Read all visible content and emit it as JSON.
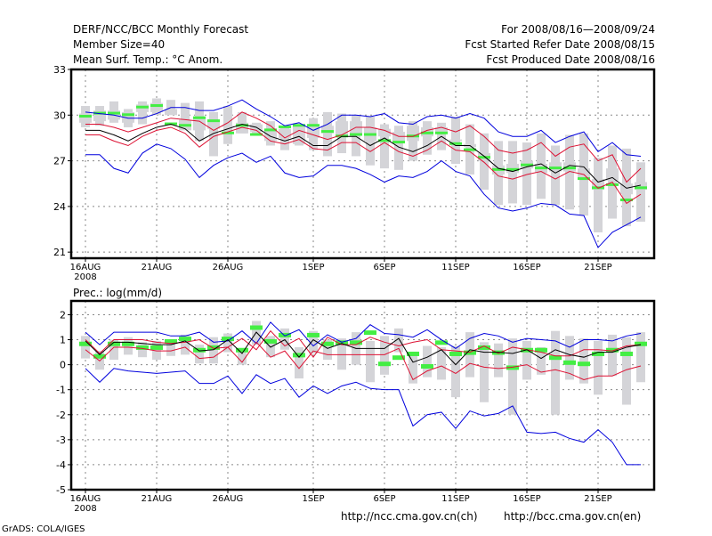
{
  "header": {
    "title": "DERF/NCC/BCC Monthly Forecast",
    "member_size": "Member Size=40",
    "variable": "Mean Surf. Temp.: °C Anom.",
    "period": "For 2008/08/16—2008/09/24",
    "started": "Fcst Started Refer Date 2008/08/15",
    "produced": "Fcst Produced Date 2008/08/16"
  },
  "footer": {
    "url_ch": "http://ncc.cma.gov.cn(ch)",
    "url_en": "http://bcc.cma.gov.cn(en)",
    "credit": "GrADS: COLA/IGES"
  },
  "colors": {
    "outer": "#0000dd",
    "inner": "#dd1133",
    "mean": "#000000",
    "box": "#d4d4d8",
    "median": "#44ee44",
    "grid": "#888888"
  },
  "chart_data": [
    {
      "type": "line",
      "title": "Mean Surf. Temp.: °C Anom.",
      "xlabel": "",
      "ylabel": "",
      "ylim": [
        20.6,
        33
      ],
      "yticks": [
        21,
        24,
        27,
        30,
        33
      ],
      "xtick_labels": [
        "16AUG",
        "21AUG",
        "26AUG",
        "1SEP",
        "6SEP",
        "11SEP",
        "16SEP",
        "21SEP"
      ],
      "xtick_days": [
        0,
        5,
        10,
        16,
        21,
        26,
        31,
        36
      ],
      "year_label": "2008",
      "grid": true,
      "days": 40,
      "series": [
        {
          "name": "max",
          "role": "outer",
          "values": [
            30.2,
            30.1,
            30.0,
            29.8,
            29.8,
            30.1,
            30.5,
            30.5,
            30.3,
            30.3,
            30.6,
            31.0,
            30.4,
            29.9,
            29.3,
            29.5,
            29.0,
            29.4,
            30.0,
            30.0,
            29.9,
            30.1,
            29.5,
            29.4,
            29.9,
            30.0,
            29.8,
            30.1,
            29.8,
            28.9,
            28.6,
            28.6,
            29.0,
            28.2,
            28.6,
            28.9,
            27.6,
            28.2,
            27.4,
            27.3
          ]
        },
        {
          "name": "p75",
          "role": "inner",
          "values": [
            29.4,
            29.4,
            29.2,
            28.9,
            29.2,
            29.5,
            29.8,
            29.7,
            29.6,
            29.0,
            29.5,
            30.2,
            29.8,
            29.3,
            28.5,
            29.0,
            28.7,
            28.4,
            28.7,
            29.2,
            29.2,
            29.0,
            28.6,
            28.6,
            29.0,
            29.2,
            28.9,
            29.3,
            28.6,
            27.7,
            27.5,
            27.7,
            28.2,
            27.3,
            27.9,
            28.1,
            27.0,
            27.4,
            25.6,
            26.5
          ]
        },
        {
          "name": "mean",
          "role": "mean",
          "values": [
            29.0,
            29.0,
            28.7,
            28.3,
            28.8,
            29.2,
            29.4,
            29.1,
            28.3,
            28.8,
            29.1,
            29.4,
            29.2,
            28.6,
            28.3,
            28.6,
            28.0,
            28.0,
            28.6,
            28.6,
            28.0,
            28.5,
            27.9,
            27.6,
            28.0,
            28.6,
            28.0,
            28.0,
            27.3,
            26.5,
            26.3,
            26.6,
            26.8,
            26.2,
            26.7,
            26.6,
            25.6,
            25.9,
            25.2,
            25.4
          ]
        },
        {
          "name": "p25",
          "role": "inner",
          "values": [
            28.7,
            28.7,
            28.3,
            28.0,
            28.6,
            29.0,
            29.2,
            28.8,
            27.9,
            28.6,
            28.9,
            29.2,
            29.0,
            28.3,
            28.1,
            28.4,
            27.8,
            27.7,
            28.2,
            28.2,
            27.6,
            28.2,
            27.6,
            27.3,
            27.7,
            28.3,
            27.7,
            27.6,
            26.9,
            26.0,
            25.8,
            26.1,
            26.3,
            25.8,
            26.3,
            26.1,
            25.2,
            25.6,
            24.2,
            24.8
          ]
        },
        {
          "name": "min",
          "role": "outer",
          "values": [
            27.4,
            27.4,
            26.5,
            26.2,
            27.5,
            28.1,
            27.8,
            27.1,
            25.9,
            26.7,
            27.2,
            27.5,
            26.9,
            27.3,
            26.2,
            25.9,
            26.0,
            26.7,
            26.7,
            26.5,
            26.1,
            25.6,
            26.0,
            25.9,
            26.3,
            27.0,
            26.3,
            26.0,
            24.8,
            23.9,
            23.7,
            23.9,
            24.2,
            24.1,
            23.5,
            23.4,
            21.3,
            22.3,
            22.8,
            23.3
          ]
        }
      ],
      "boxes": {
        "low": [
          29.2,
          29.3,
          29.5,
          29.2,
          29.4,
          30.0,
          30.2,
          29.6,
          28.3,
          27.3,
          28.1,
          28.8,
          28.7,
          28.0,
          27.7,
          28.0,
          27.7,
          27.3,
          27.5,
          27.3,
          26.7,
          26.5,
          26.4,
          27.0,
          27.4,
          27.7,
          26.8,
          26.1,
          25.1,
          24.1,
          24.2,
          24.1,
          24.5,
          24.1,
          23.8,
          23.4,
          22.3,
          23.2,
          22.7,
          23.0
        ],
        "high": [
          30.6,
          30.6,
          30.9,
          30.4,
          30.9,
          31.1,
          31.0,
          30.8,
          30.9,
          30.2,
          30.6,
          30.2,
          29.5,
          29.6,
          29.2,
          28.6,
          29.8,
          30.2,
          30.1,
          30.0,
          29.9,
          29.4,
          29.3,
          29.6,
          29.6,
          29.5,
          29.9,
          29.4,
          28.8,
          28.3,
          28.3,
          28.2,
          28.8,
          28.0,
          28.7,
          28.8,
          27.2,
          28.0,
          27.8,
          26.9
        ],
        "q1": [
          29.5,
          29.6,
          29.7,
          29.5,
          30.2,
          30.2,
          30.4,
          29.0,
          29.0,
          29.1,
          29.3,
          29.5,
          28.9,
          28.3,
          28.5,
          28.1,
          28.5,
          28.8,
          28.6,
          28.7,
          28.3,
          28.6,
          28.2,
          28.3,
          28.6,
          28.8,
          28.3,
          27.9,
          27.0,
          26.1,
          26.2,
          26.5,
          26.2,
          26.3,
          26.3,
          25.9,
          25.1,
          25.7,
          24.8,
          25.1
        ],
        "q3": [
          30.1,
          30.3,
          30.3,
          30.2,
          30.7,
          30.8,
          30.0,
          29.7,
          29.8,
          29.7,
          29.3,
          28.8,
          29.4,
          29.1,
          29.1,
          29.3,
          29.3,
          29.3,
          29.6,
          29.6,
          29.2,
          29.1,
          28.9,
          29.3,
          29.2,
          29.2,
          28.4,
          28.1,
          27.5,
          26.7,
          26.8,
          27.0,
          26.8,
          26.9,
          26.9,
          26.5,
          25.8,
          26.5,
          25.5,
          25.6
        ],
        "median": [
          29.9,
          30.1,
          30.1,
          30.0,
          30.5,
          30.6,
          29.4,
          29.3,
          29.8,
          29.6,
          28.8,
          29.3,
          28.7,
          29.0,
          29.2,
          29.3,
          29.3,
          28.9,
          28.6,
          28.7,
          28.7,
          28.3,
          28.2,
          28.6,
          28.8,
          28.8,
          28.1,
          27.7,
          27.2,
          26.4,
          26.4,
          26.7,
          26.5,
          26.5,
          26.5,
          25.8,
          25.2,
          25.4,
          24.4,
          25.2
        ]
      }
    },
    {
      "type": "line",
      "title": "Prec.: log(mm/d)",
      "xlabel": "",
      "ylabel": "",
      "ylim": [
        -5,
        2.55
      ],
      "yticks": [
        -5,
        -4,
        -3,
        -2,
        -1,
        0,
        1,
        2
      ],
      "xtick_labels": [
        "16AUG",
        "21AUG",
        "26AUG",
        "1SEP",
        "6SEP",
        "11SEP",
        "16SEP",
        "21SEP"
      ],
      "xtick_days": [
        0,
        5,
        10,
        16,
        21,
        26,
        31,
        36
      ],
      "year_label": "2008",
      "grid": true,
      "days": 40,
      "series": [
        {
          "name": "max",
          "role": "outer",
          "values": [
            1.3,
            0.8,
            1.3,
            1.3,
            1.3,
            1.3,
            1.15,
            1.15,
            1.3,
            0.9,
            0.95,
            1.35,
            0.85,
            1.7,
            1.15,
            1.4,
            0.75,
            1.2,
            0.9,
            1.05,
            1.6,
            1.25,
            1.2,
            1.1,
            1.4,
            1.0,
            0.65,
            1.05,
            1.25,
            1.15,
            0.9,
            1.05,
            1.0,
            0.95,
            0.7,
            1.0,
            1.0,
            0.95,
            1.15,
            1.25
          ]
        },
        {
          "name": "p75",
          "role": "inner",
          "values": [
            1.0,
            0.45,
            1.0,
            1.0,
            1.0,
            0.9,
            0.85,
            0.9,
            1.0,
            0.65,
            0.7,
            1.05,
            0.6,
            1.35,
            0.75,
            1.05,
            0.3,
            1.1,
            0.8,
            0.8,
            1.1,
            0.9,
            0.75,
            0.9,
            1.0,
            0.6,
            0.55,
            0.5,
            0.75,
            0.45,
            0.7,
            0.6,
            0.5,
            0.35,
            0.35,
            0.6,
            0.6,
            0.55,
            0.75,
            0.8
          ]
        },
        {
          "name": "mean",
          "role": "mean",
          "values": [
            0.95,
            0.4,
            0.9,
            0.9,
            0.85,
            0.8,
            0.8,
            0.95,
            0.55,
            0.6,
            1.0,
            0.45,
            1.3,
            0.7,
            1.0,
            0.3,
            1.0,
            0.65,
            0.85,
            0.65,
            0.65,
            0.65,
            1.05,
            0.1,
            0.3,
            0.6,
            0.0,
            0.6,
            0.5,
            0.5,
            0.45,
            0.6,
            0.25,
            0.6,
            0.4,
            0.3,
            0.5,
            0.5,
            0.7,
            0.8
          ]
        },
        {
          "name": "p25",
          "role": "inner",
          "values": [
            0.6,
            0.15,
            0.7,
            0.7,
            0.65,
            0.55,
            0.55,
            0.7,
            0.25,
            0.3,
            0.7,
            0.1,
            0.9,
            0.3,
            0.55,
            -0.15,
            0.55,
            0.4,
            0.4,
            0.4,
            0.4,
            0.4,
            0.65,
            -0.6,
            -0.25,
            -0.05,
            -0.35,
            0.05,
            -0.1,
            -0.15,
            -0.1,
            0.0,
            -0.3,
            -0.2,
            -0.35,
            -0.6,
            -0.45,
            -0.45,
            -0.2,
            -0.05
          ]
        },
        {
          "name": "min",
          "role": "outer",
          "values": [
            -0.15,
            -0.7,
            -0.15,
            -0.25,
            -0.3,
            -0.35,
            -0.3,
            -0.25,
            -0.75,
            -0.75,
            -0.45,
            -1.15,
            -0.4,
            -0.75,
            -0.55,
            -1.3,
            -0.85,
            -1.15,
            -0.85,
            -0.7,
            -0.95,
            -1.0,
            -1.0,
            -2.45,
            -2.0,
            -1.9,
            -2.55,
            -1.85,
            -2.05,
            -1.95,
            -1.65,
            -2.7,
            -2.75,
            -2.7,
            -2.95,
            -3.1,
            -2.6,
            -3.1,
            -4.0,
            -4.0
          ]
        }
      ],
      "boxes": {
        "low": [
          0.25,
          -0.2,
          0.2,
          0.4,
          0.3,
          0.2,
          0.35,
          0.4,
          0.05,
          0.05,
          0.5,
          0.0,
          0.8,
          0.3,
          0.6,
          -0.55,
          0.45,
          0.2,
          -0.2,
          0.0,
          -0.7,
          -0.4,
          0.5,
          -0.75,
          -0.5,
          -0.6,
          -1.3,
          -0.5,
          -1.5,
          -0.5,
          -2.0,
          -0.6,
          -0.4,
          -2.0,
          -0.6,
          -0.75,
          -1.2,
          -0.45,
          -1.6,
          -0.7
        ],
        "high": [
          1.15,
          0.55,
          1.0,
          1.1,
          0.9,
          0.95,
          0.85,
          1.2,
          0.8,
          1.1,
          1.25,
          0.65,
          1.75,
          1.15,
          1.45,
          0.7,
          1.35,
          1.0,
          1.05,
          1.3,
          0.95,
          1.15,
          1.45,
          0.4,
          0.75,
          0.7,
          0.75,
          1.3,
          0.9,
          0.85,
          1.05,
          0.95,
          0.7,
          1.35,
          1.15,
          1.05,
          0.95,
          1.2,
          1.1,
          1.3
        ]
      },
      "boxes_median": [
        0.85,
        0.35,
        0.85,
        0.85,
        0.7,
        0.7,
        0.95,
        1.05,
        0.6,
        0.7,
        1.05,
        0.6,
        1.5,
        0.95,
        1.2,
        0.4,
        1.2,
        0.85,
        0.9,
        0.9,
        1.3,
        0.05,
        0.3,
        0.45,
        -0.05,
        0.9,
        0.45,
        0.5,
        0.7,
        0.5,
        -0.1,
        0.6,
        0.6,
        0.3,
        0.1,
        0.05,
        0.45,
        0.6,
        0.45,
        0.85
      ]
    }
  ]
}
